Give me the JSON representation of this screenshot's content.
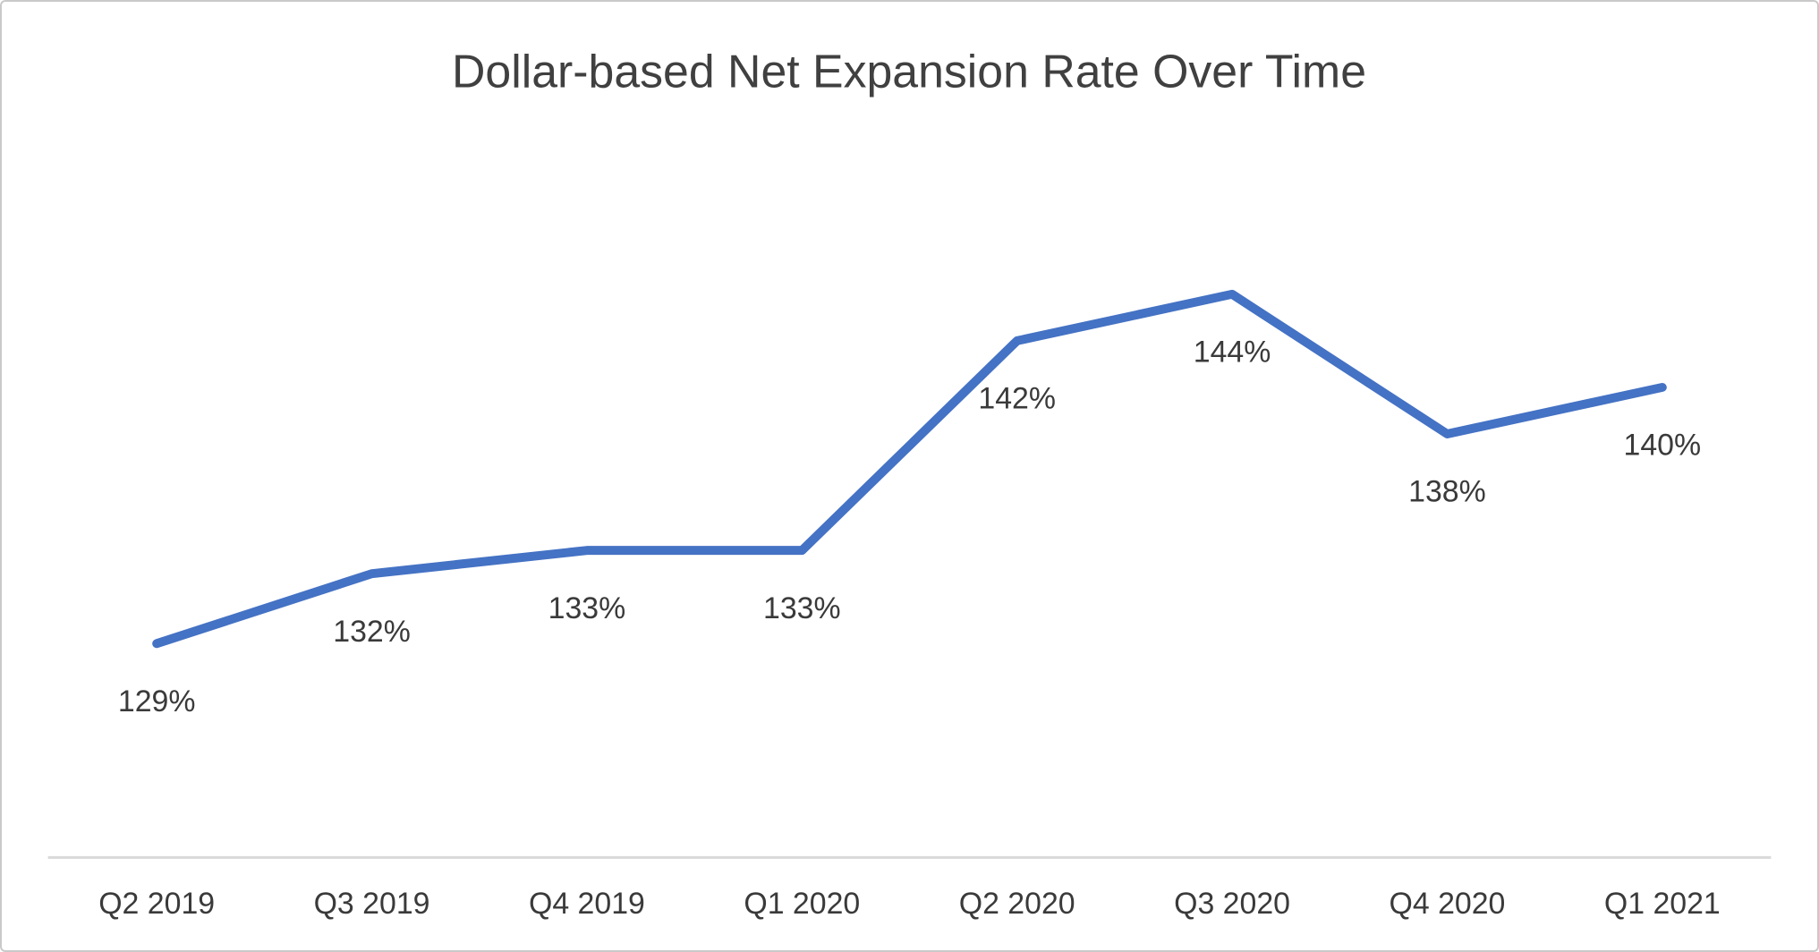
{
  "chart_data": {
    "type": "line",
    "title": "Dollar-based Net Expansion Rate Over Time",
    "categories": [
      "Q2 2019",
      "Q3 2019",
      "Q4 2019",
      "Q1 2020",
      "Q2 2020",
      "Q3 2020",
      "Q4 2020",
      "Q1 2021"
    ],
    "values": [
      129,
      132,
      133,
      133,
      142,
      144,
      138,
      140
    ],
    "data_labels": [
      "129%",
      "132%",
      "133%",
      "133%",
      "142%",
      "144%",
      "138%",
      "140%"
    ],
    "unit": "%",
    "xlabel": "",
    "ylabel": "",
    "ylim": [
      125,
      148
    ],
    "grid": false,
    "legend_position": "none",
    "data_label_position": "below",
    "colors": {
      "line": "#4472C4",
      "title_text": "#404040",
      "label_text": "#3a3a3a",
      "axis_line": "#d9d9d9",
      "frame_border": "#c9c9c9",
      "background": "#ffffff"
    }
  }
}
